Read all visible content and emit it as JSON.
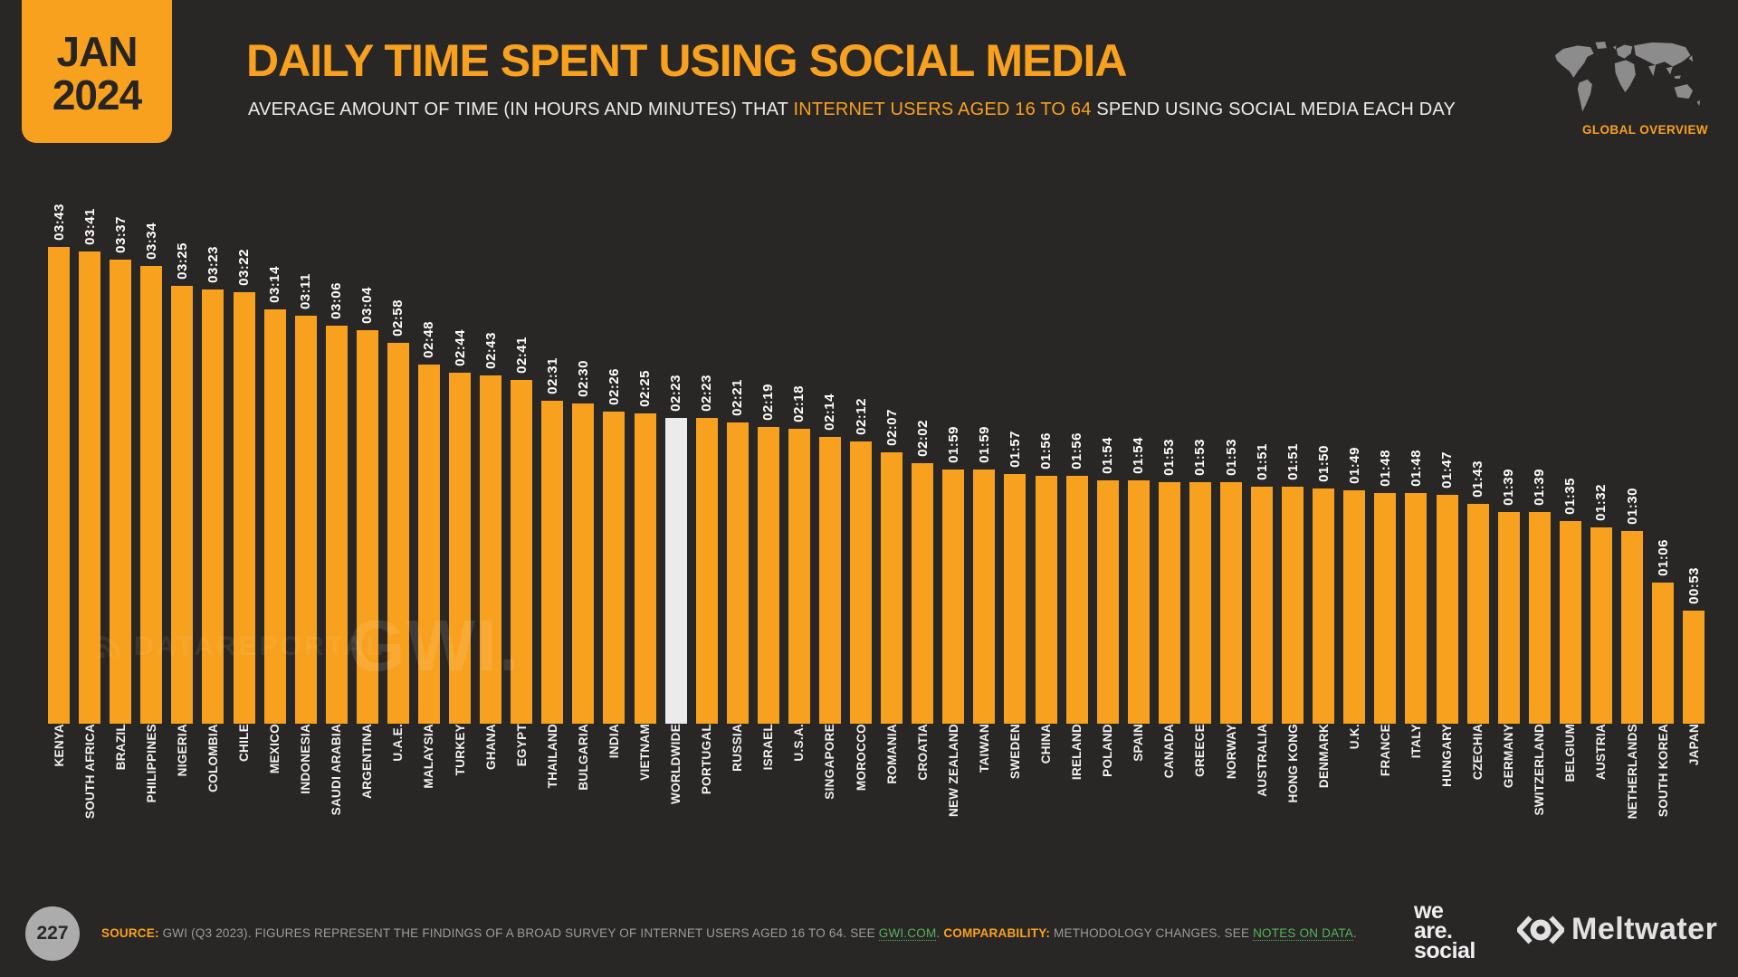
{
  "header": {
    "month": "JAN",
    "year": "2024",
    "title": "DAILY TIME SPENT USING SOCIAL MEDIA",
    "subtitle_pre": "AVERAGE AMOUNT OF TIME (IN HOURS AND MINUTES) THAT ",
    "subtitle_highlight": "INTERNET USERS AGED 16 TO 64",
    "subtitle_post": " SPEND USING SOCIAL MEDIA EACH DAY",
    "global_overview_label": "GLOBAL OVERVIEW"
  },
  "chart_data": {
    "type": "bar",
    "orientation": "vertical",
    "unit": "hours:minutes per day",
    "title": "Daily time spent using social media",
    "legend": "none",
    "grid": false,
    "categories": [
      "KENYA",
      "SOUTH AFRICA",
      "BRAZIL",
      "PHILIPPINES",
      "NIGERIA",
      "COLOMBIA",
      "CHILE",
      "MEXICO",
      "INDONESIA",
      "SAUDI ARABIA",
      "ARGENTINA",
      "U.A.E.",
      "MALAYSIA",
      "TURKEY",
      "GHANA",
      "EGYPT",
      "THAILAND",
      "BULGARIA",
      "INDIA",
      "VIETNAM",
      "WORLDWIDE",
      "PORTUGAL",
      "RUSSIA",
      "ISRAEL",
      "U.S.A.",
      "SINGAPORE",
      "MOROCCO",
      "ROMANIA",
      "CROATIA",
      "NEW ZEALAND",
      "TAIWAN",
      "SWEDEN",
      "CHINA",
      "IRELAND",
      "POLAND",
      "SPAIN",
      "CANADA",
      "GREECE",
      "NORWAY",
      "AUSTRALIA",
      "HONG KONG",
      "DENMARK",
      "U.K.",
      "FRANCE",
      "ITALY",
      "HUNGARY",
      "CZECHIA",
      "GERMANY",
      "SWITZERLAND",
      "BELGIUM",
      "AUSTRIA",
      "NETHERLANDS",
      "SOUTH KOREA",
      "JAPAN"
    ],
    "values": [
      "03:43",
      "03:41",
      "03:37",
      "03:34",
      "03:25",
      "03:23",
      "03:22",
      "03:14",
      "03:11",
      "03:06",
      "03:04",
      "02:58",
      "02:48",
      "02:44",
      "02:43",
      "02:41",
      "02:31",
      "02:30",
      "02:26",
      "02:25",
      "02:23",
      "02:23",
      "02:21",
      "02:19",
      "02:18",
      "02:14",
      "02:12",
      "02:07",
      "02:02",
      "01:59",
      "01:59",
      "01:57",
      "01:56",
      "01:56",
      "01:54",
      "01:54",
      "01:53",
      "01:53",
      "01:53",
      "01:51",
      "01:51",
      "01:50",
      "01:49",
      "01:48",
      "01:48",
      "01:47",
      "01:43",
      "01:39",
      "01:39",
      "01:35",
      "01:32",
      "01:30",
      "01:06",
      "00:53"
    ],
    "highlight_category": "WORLDWIDE",
    "bar_color": "#F8A11E",
    "highlight_color": "#EBEBEB"
  },
  "watermarks": {
    "dataportal": "DATAREPORTAL",
    "gwi": "GWI."
  },
  "footer": {
    "page_number": "227",
    "source_label": "SOURCE:",
    "source_text_1": " GWI (Q3 2023). FIGURES REPRESENT THE FINDINGS OF A BROAD SURVEY OF INTERNET USERS AGED 16 TO 64. SEE ",
    "link_gwi": "GWI.COM",
    "source_text_2": ". ",
    "comparability_label": "COMPARABILITY:",
    "source_text_3": " METHODOLOGY CHANGES. SEE ",
    "link_notes": "NOTES ON DATA",
    "source_text_4": ".",
    "we_are_social": [
      "we",
      "are.",
      "social"
    ],
    "meltwater": "Meltwater"
  }
}
